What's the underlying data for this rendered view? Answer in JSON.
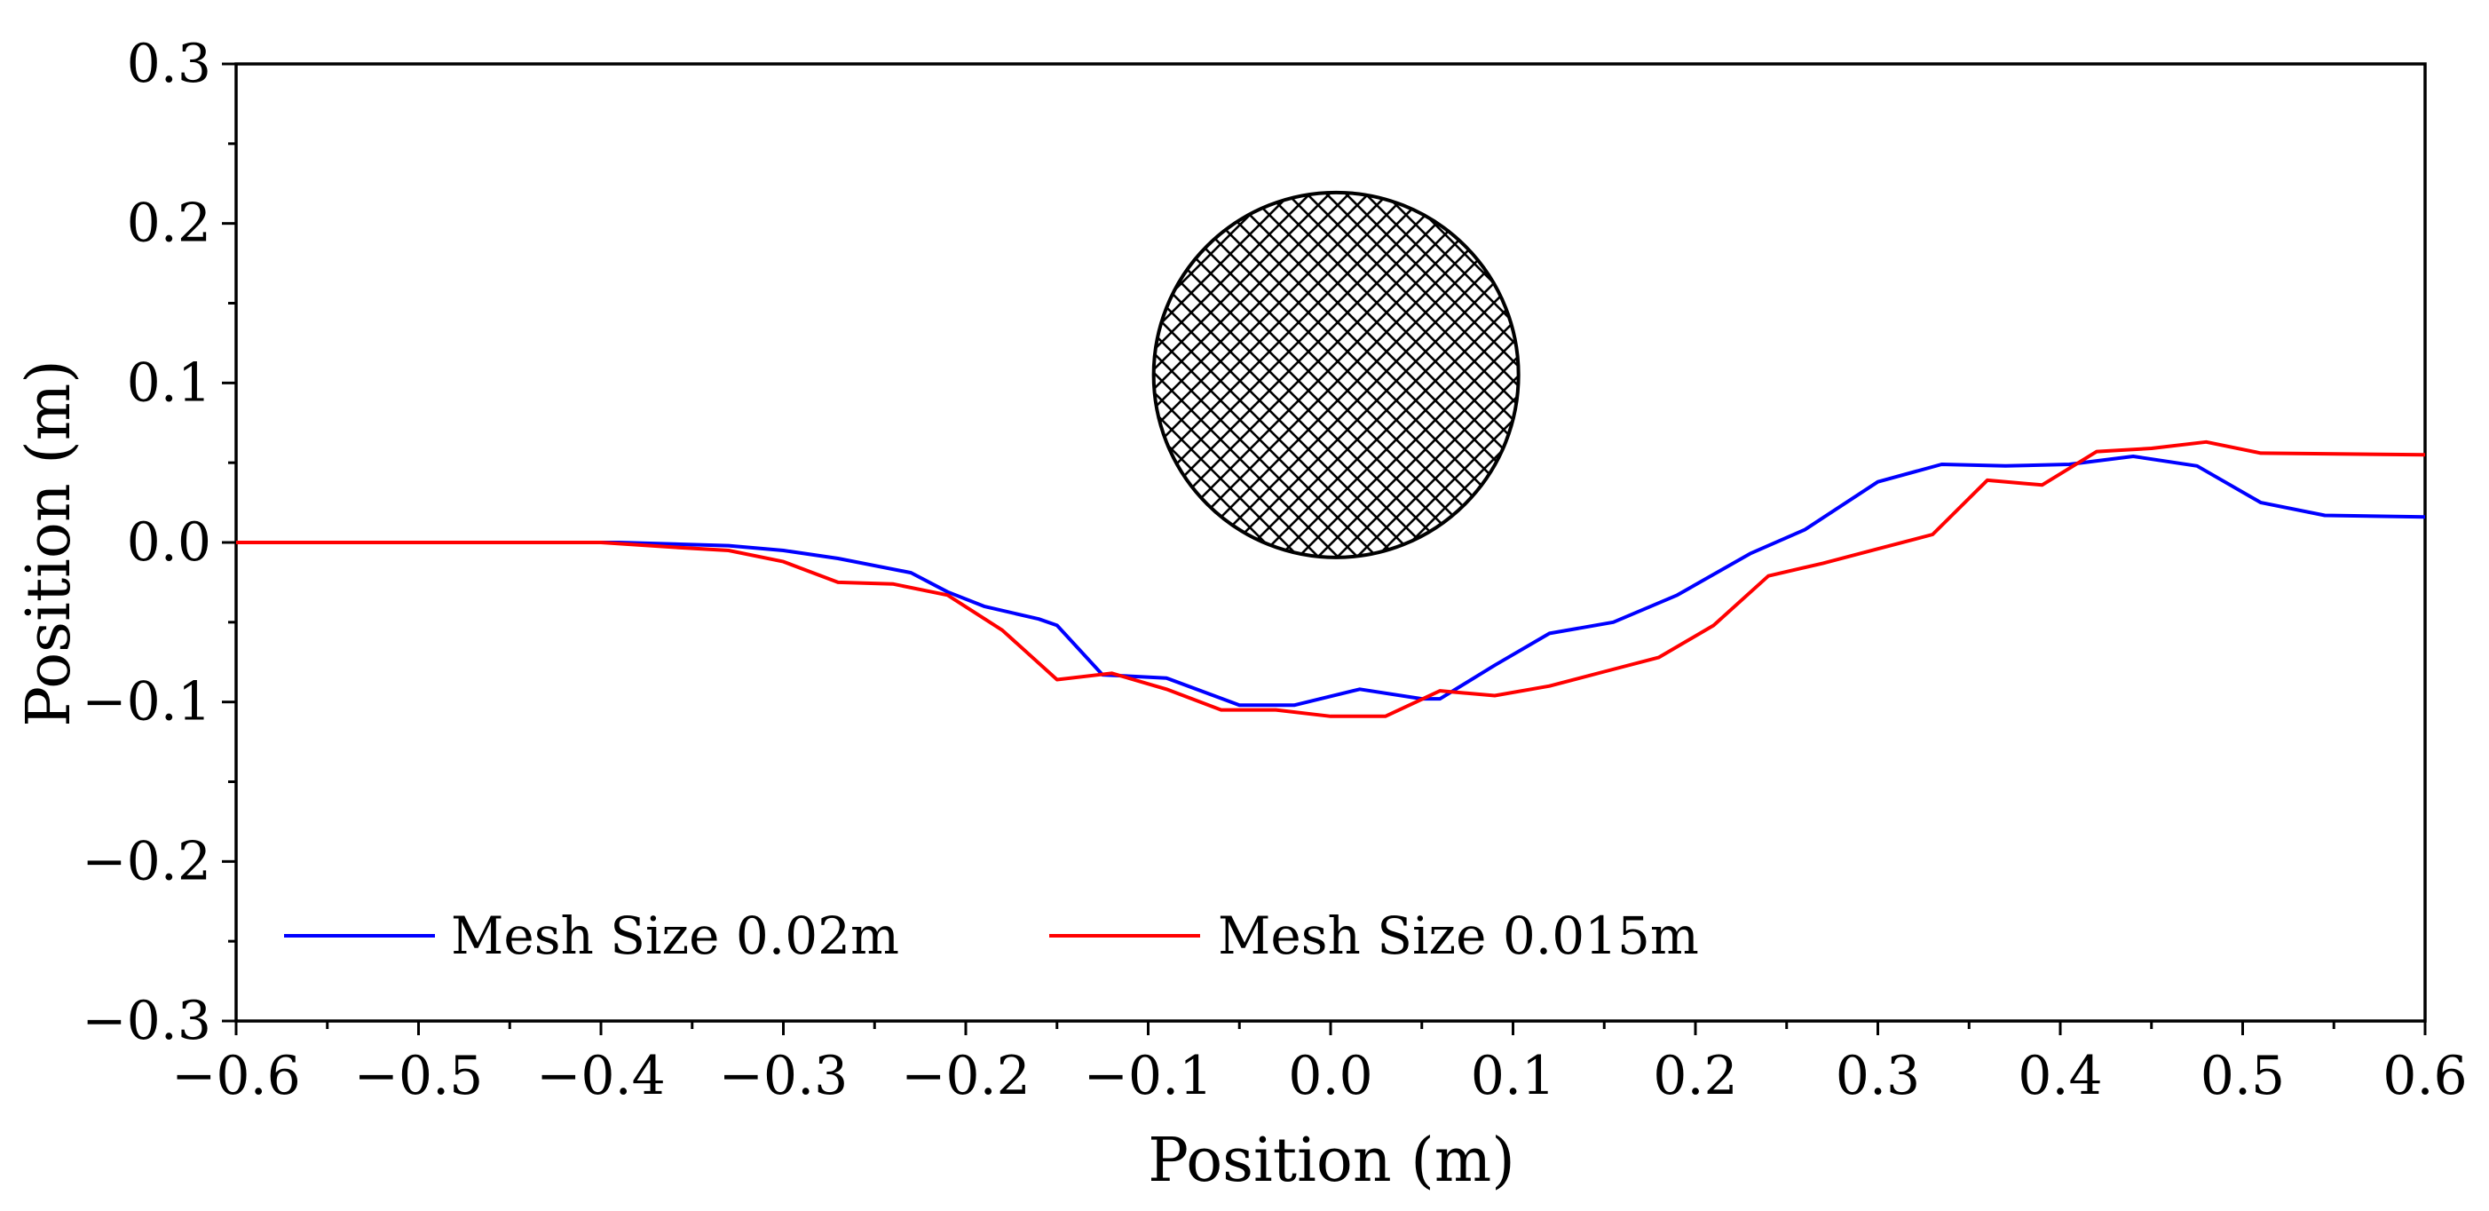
{
  "chart_data": {
    "type": "line",
    "title": "",
    "xlabel": "Position (m)",
    "ylabel": "Position (m)",
    "xlim": [
      -0.6,
      0.6
    ],
    "ylim": [
      -0.3,
      0.3
    ],
    "grid": false,
    "legend_position": "bottom-left",
    "xticks": [
      -0.6,
      -0.5,
      -0.4,
      -0.3,
      -0.2,
      -0.1,
      0.0,
      0.1,
      0.2,
      0.3,
      0.4,
      0.5,
      0.6
    ],
    "xtick_labels": [
      "−0.6",
      "−0.5",
      "−0.4",
      "−0.3",
      "−0.2",
      "−0.1",
      "0.0",
      "0.1",
      "0.2",
      "0.3",
      "0.4",
      "0.5",
      "0.6"
    ],
    "yticks": [
      -0.3,
      -0.2,
      -0.1,
      0.0,
      0.1,
      0.2,
      0.3
    ],
    "ytick_labels": [
      "−0.3",
      "−0.2",
      "−0.1",
      "0.0",
      "0.1",
      "0.2",
      "0.3"
    ],
    "series": [
      {
        "name": "Mesh Size 0.02m",
        "color": "#0000ff",
        "x": [
          -0.6,
          -0.5,
          -0.45,
          -0.39,
          -0.33,
          -0.3,
          -0.27,
          -0.23,
          -0.21,
          -0.19,
          -0.16,
          -0.15,
          -0.125,
          -0.09,
          -0.05,
          -0.02,
          0.016,
          0.05,
          0.06,
          0.09,
          0.12,
          0.155,
          0.19,
          0.23,
          0.26,
          0.3,
          0.335,
          0.37,
          0.405,
          0.44,
          0.475,
          0.51,
          0.545,
          0.6
        ],
        "y": [
          0.0,
          0.0,
          0.0,
          0.0,
          -0.002,
          -0.005,
          -0.01,
          -0.019,
          -0.031,
          -0.04,
          -0.048,
          -0.052,
          -0.083,
          -0.085,
          -0.102,
          -0.102,
          -0.092,
          -0.098,
          -0.098,
          -0.077,
          -0.057,
          -0.05,
          -0.033,
          -0.007,
          0.008,
          0.038,
          0.049,
          0.048,
          0.049,
          0.054,
          0.048,
          0.025,
          0.017,
          0.016
        ]
      },
      {
        "name": "Mesh Size 0.015m",
        "color": "#ff0000",
        "x": [
          -0.6,
          -0.5,
          -0.4,
          -0.36,
          -0.33,
          -0.3,
          -0.27,
          -0.24,
          -0.21,
          -0.18,
          -0.15,
          -0.12,
          -0.09,
          -0.06,
          -0.03,
          0.0,
          0.03,
          0.06,
          0.09,
          0.12,
          0.15,
          0.18,
          0.21,
          0.24,
          0.27,
          0.3,
          0.33,
          0.36,
          0.39,
          0.42,
          0.45,
          0.48,
          0.51,
          0.6
        ],
        "y": [
          0.0,
          0.0,
          0.0,
          -0.003,
          -0.005,
          -0.012,
          -0.025,
          -0.026,
          -0.033,
          -0.055,
          -0.086,
          -0.082,
          -0.092,
          -0.105,
          -0.105,
          -0.109,
          -0.109,
          -0.093,
          -0.096,
          -0.09,
          -0.081,
          -0.072,
          -0.052,
          -0.021,
          -0.013,
          -0.004,
          0.005,
          0.039,
          0.036,
          0.057,
          0.059,
          0.063,
          0.056,
          0.055
        ]
      }
    ],
    "annotations": [
      {
        "type": "cross-hatched circle",
        "center": [
          0.003,
          0.105
        ],
        "radius_m": 0.1,
        "fill": "#000000"
      }
    ]
  }
}
